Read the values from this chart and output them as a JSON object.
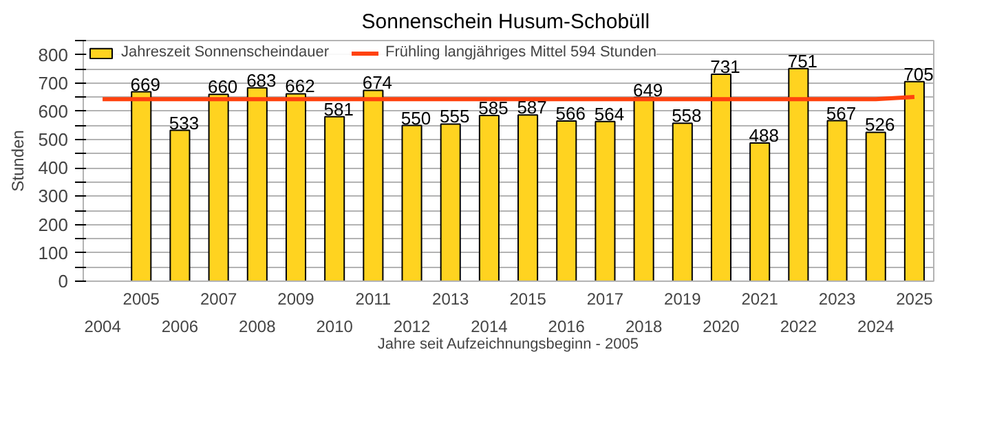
{
  "chart_data": {
    "type": "bar",
    "title": "Sonnenschein  Husum-Schobüll",
    "xlabel": "Jahre seit Aufzeichnungsbeginn - 2005",
    "ylabel": "Stunden",
    "categories": [
      "2004",
      "2005",
      "2006",
      "2007",
      "2008",
      "2009",
      "2010",
      "2011",
      "2012",
      "2013",
      "2014",
      "2015",
      "2016",
      "2017",
      "2018",
      "2019",
      "2020",
      "2021",
      "2022",
      "2023",
      "2024",
      "2025"
    ],
    "series": [
      {
        "name": "Jahreszeit Sonnenscheindauer",
        "color": "#ffd320",
        "values": [
          null,
          669,
          533,
          660,
          683,
          662,
          581,
          674,
          550,
          555,
          585,
          587,
          566,
          564,
          649,
          558,
          731,
          488,
          751,
          567,
          526,
          705
        ],
        "value_labels": [
          null,
          "669",
          "533",
          "660",
          "683",
          "662",
          "581",
          "674",
          "550",
          "555",
          "585",
          "587",
          "566",
          "564",
          "649",
          "558",
          "731",
          "488",
          "751",
          "567",
          "526",
          "705"
        ]
      },
      {
        "name": "Frühling langjähriges Mittel 594 Stunden",
        "type": "line",
        "color": "#ff420e",
        "values": [
          643,
          643,
          643,
          643,
          643,
          643,
          643,
          643,
          643,
          643,
          643,
          643,
          643,
          643,
          643,
          643,
          643,
          643,
          643,
          643,
          643,
          651
        ]
      }
    ],
    "ylim": [
      0,
      850
    ],
    "yticks": [
      0,
      {
        "value": 50,
        "label": null
      },
      100,
      {
        "value": 150,
        "label": null
      },
      200,
      {
        "value": 250,
        "label": null
      },
      300,
      {
        "value": 350,
        "label": null
      },
      400,
      {
        "value": 450,
        "label": null
      },
      500,
      {
        "value": 550,
        "label": null
      },
      600,
      {
        "value": 650,
        "label": null
      },
      700,
      {
        "value": 750,
        "label": null
      },
      800,
      {
        "value": 850,
        "label": null
      }
    ],
    "grid": "y",
    "legend": "top"
  }
}
